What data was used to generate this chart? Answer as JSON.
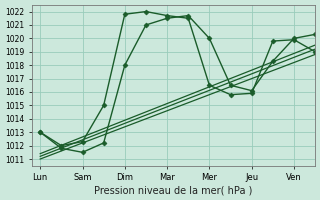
{
  "background_color": "#cce8dc",
  "grid_color": "#99ccbb",
  "line_color": "#1a5c2a",
  "xlabel": "Pression niveau de la mer( hPa )",
  "xtick_labels": [
    "Lun",
    "Sam",
    "Dim",
    "Mar",
    "Mer",
    "Jeu",
    "Ven"
  ],
  "ylim": [
    1010.5,
    1022.5
  ],
  "yticks": [
    1011,
    1012,
    1013,
    1014,
    1015,
    1016,
    1017,
    1018,
    1019,
    1020,
    1021,
    1022
  ],
  "lines": [
    {
      "x": [
        0,
        0.5,
        1.0,
        1.5,
        2.0,
        2.5,
        3.0,
        3.5,
        4.0,
        4.5,
        5.0,
        5.5,
        6.0,
        6.5
      ],
      "y": [
        1013.0,
        1011.8,
        1011.5,
        1012.2,
        1018.0,
        1021.0,
        1021.5,
        1021.7,
        1020.0,
        1016.5,
        1016.1,
        1018.3,
        1020.0,
        1020.3
      ],
      "marker": "D",
      "markersize": 2.5,
      "linewidth": 1.0
    },
    {
      "x": [
        0,
        0.5,
        1.0,
        1.5,
        2.0,
        2.5,
        3.0,
        3.5,
        4.0,
        4.5,
        5.0,
        5.5,
        6.0,
        6.5
      ],
      "y": [
        1013.0,
        1012.0,
        1012.3,
        1015.0,
        1021.8,
        1022.0,
        1021.7,
        1021.5,
        1016.5,
        1015.8,
        1015.9,
        1019.8,
        1019.9,
        1019.0
      ],
      "marker": "D",
      "markersize": 2.5,
      "linewidth": 1.0
    },
    {
      "x": [
        0,
        6.5
      ],
      "y": [
        1011.0,
        1018.8
      ],
      "marker": null,
      "linewidth": 0.9
    },
    {
      "x": [
        0,
        6.5
      ],
      "y": [
        1011.2,
        1019.2
      ],
      "marker": null,
      "linewidth": 0.9
    },
    {
      "x": [
        0,
        6.5
      ],
      "y": [
        1011.4,
        1019.5
      ],
      "marker": null,
      "linewidth": 0.9
    }
  ]
}
